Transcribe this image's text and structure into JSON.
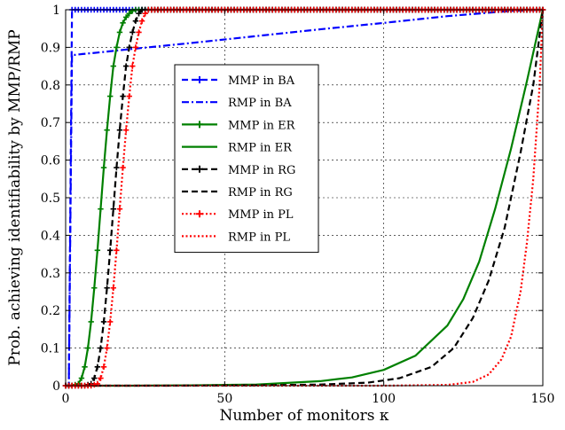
{
  "chart_data": {
    "type": "line",
    "title": "",
    "xlabel": "Number of monitors κ",
    "ylabel": "Prob. achieving identifiability by MMP/RMP",
    "xlim": [
      0,
      150
    ],
    "ylim": [
      0,
      1
    ],
    "xticks": [
      "0",
      "50",
      "100",
      "150"
    ],
    "yticks": [
      "0",
      "0.1",
      "0.2",
      "0.3",
      "0.4",
      "0.5",
      "0.6",
      "0.7",
      "0.8",
      "0.9",
      "1"
    ],
    "grid": true,
    "legend_position": "center-left",
    "series": [
      {
        "name": "MMP in BA",
        "color": "#0000ff",
        "style": "dashed-plus",
        "x": [
          0,
          1,
          2,
          3,
          4,
          6,
          10,
          20,
          50,
          100,
          150
        ],
        "y": [
          0,
          0,
          1,
          1,
          1,
          1,
          1,
          1,
          1,
          1,
          1
        ]
      },
      {
        "name": "RMP in BA",
        "color": "#0000ff",
        "style": "dashdot",
        "x": [
          0,
          1,
          2,
          3,
          5,
          10,
          20,
          40,
          60,
          80,
          100,
          120,
          140,
          150
        ],
        "y": [
          0,
          0,
          0.88,
          0.88,
          0.882,
          0.886,
          0.895,
          0.912,
          0.93,
          0.948,
          0.965,
          0.983,
          0.997,
          1
        ]
      },
      {
        "name": "MMP in ER",
        "color": "#008000",
        "style": "solid-plus",
        "x": [
          0,
          2,
          4,
          5,
          6,
          7,
          8,
          9,
          10,
          11,
          12,
          13,
          14,
          15,
          16,
          17,
          18,
          19,
          20,
          21,
          22,
          150
        ],
        "y": [
          0,
          0,
          0.005,
          0.02,
          0.05,
          0.1,
          0.17,
          0.26,
          0.36,
          0.47,
          0.58,
          0.68,
          0.77,
          0.85,
          0.9,
          0.94,
          0.965,
          0.98,
          0.99,
          0.997,
          1,
          1
        ]
      },
      {
        "name": "RMP in ER",
        "color": "#008000",
        "style": "solid",
        "x": [
          0,
          20,
          40,
          60,
          80,
          90,
          100,
          110,
          120,
          125,
          130,
          135,
          140,
          145,
          150
        ],
        "y": [
          0,
          0,
          0.001,
          0.003,
          0.012,
          0.022,
          0.042,
          0.08,
          0.16,
          0.23,
          0.33,
          0.47,
          0.63,
          0.81,
          1
        ]
      },
      {
        "name": "MMP in RG",
        "color": "#000000",
        "style": "dashed-plus",
        "x": [
          0,
          6,
          8,
          9,
          10,
          11,
          12,
          13,
          14,
          15,
          16,
          17,
          18,
          19,
          20,
          21,
          22,
          23,
          24,
          150
        ],
        "y": [
          0,
          0,
          0.005,
          0.02,
          0.05,
          0.1,
          0.17,
          0.26,
          0.36,
          0.47,
          0.58,
          0.68,
          0.77,
          0.85,
          0.9,
          0.94,
          0.97,
          0.99,
          1,
          1
        ]
      },
      {
        "name": "RMP in RG",
        "color": "#000000",
        "style": "dashed",
        "x": [
          0,
          30,
          60,
          80,
          95,
          105,
          115,
          122,
          128,
          133,
          138,
          143,
          147,
          150
        ],
        "y": [
          0,
          0,
          0.001,
          0.003,
          0.008,
          0.02,
          0.05,
          0.1,
          0.18,
          0.28,
          0.42,
          0.62,
          0.8,
          1
        ]
      },
      {
        "name": "MMP in PL",
        "color": "#ff0000",
        "style": "dotted-plus",
        "x": [
          0,
          8,
          10,
          11,
          12,
          13,
          14,
          15,
          16,
          17,
          18,
          19,
          20,
          21,
          22,
          23,
          24,
          25,
          26,
          150
        ],
        "y": [
          0,
          0,
          0.005,
          0.02,
          0.05,
          0.1,
          0.17,
          0.26,
          0.36,
          0.47,
          0.58,
          0.68,
          0.77,
          0.85,
          0.9,
          0.94,
          0.97,
          0.99,
          1,
          1
        ]
      },
      {
        "name": "RMP in PL",
        "color": "#ff0000",
        "style": "dotted",
        "x": [
          0,
          100,
          120,
          128,
          133,
          137,
          140,
          143,
          145,
          147,
          149,
          150
        ],
        "y": [
          0,
          0,
          0.002,
          0.01,
          0.03,
          0.07,
          0.13,
          0.25,
          0.38,
          0.55,
          0.8,
          1
        ]
      }
    ]
  }
}
